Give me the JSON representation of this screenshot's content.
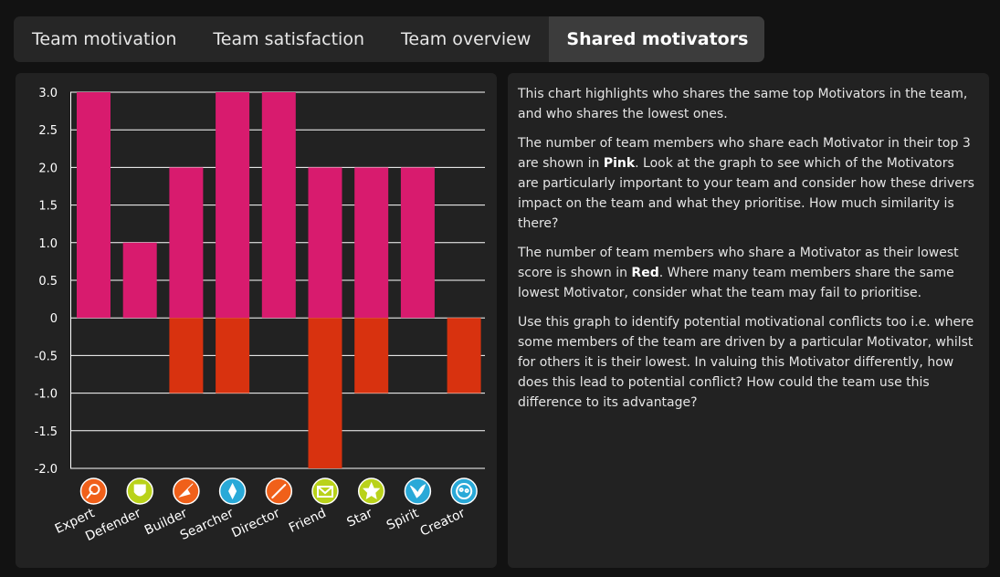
{
  "tabs": [
    {
      "label": "Team motivation",
      "active": false
    },
    {
      "label": "Team satisfaction",
      "active": false
    },
    {
      "label": "Team overview",
      "active": false
    },
    {
      "label": "Shared motivators",
      "active": true
    }
  ],
  "description": {
    "p1": "This chart highlights who shares the same top Motivators in the team, and who shares the lowest ones.",
    "p2_before": "The number of team members who share each Motivator in their top 3 are shown in ",
    "p2_bold": "Pink",
    "p2_after": ". Look at the graph to see which of the Motivators are particularly important to your team and consider how these drivers impact on the team and what they prioritise. How much similarity is there?",
    "p3_before": "The number of team members who share a Motivator as their lowest score is shown in ",
    "p3_bold": "Red",
    "p3_after": ". Where many team members share the same lowest Motivator, consider what the team may fail to prioritise.",
    "p4": "Use this graph to identify potential motivational conflicts too i.e. where some members of the team are driven by a particular Motivator, whilst for others it is their lowest. In valuing this Motivator differently, how does this lead to potential conflict? How could the team use this difference to its advantage?"
  },
  "chart_data": {
    "type": "bar",
    "categories": [
      "Expert",
      "Defender",
      "Builder",
      "Searcher",
      "Director",
      "Friend",
      "Star",
      "Spirit",
      "Creator"
    ],
    "series": [
      {
        "values": [
          3,
          1,
          2,
          3,
          3,
          2,
          2,
          2,
          0
        ],
        "color": "#d81b6e"
      },
      {
        "values": [
          0,
          0,
          -1,
          -1,
          0,
          -2,
          -1,
          0,
          -1
        ],
        "color": "#d8320f"
      }
    ],
    "ylim": [
      -2,
      3
    ],
    "yticks": [
      3.0,
      2.5,
      2.0,
      1.5,
      1.0,
      0.5,
      0,
      -0.5,
      -1.0,
      -1.5,
      -2.0
    ],
    "ytick_labels": [
      "3.0",
      "2.5",
      "2.0",
      "1.5",
      "1.0",
      "0.5",
      "0",
      "-0.5",
      "-1.0",
      "-1.5",
      "-2.0"
    ],
    "grid": true,
    "icons": [
      {
        "name": "magnifier-icon",
        "color": "#f0601a"
      },
      {
        "name": "shield-icon",
        "color": "#b9d21a"
      },
      {
        "name": "trowel-icon",
        "color": "#f0601a"
      },
      {
        "name": "compass-icon",
        "color": "#29a9d8"
      },
      {
        "name": "baton-icon",
        "color": "#f0601a"
      },
      {
        "name": "envelope-icon",
        "color": "#b9d21a"
      },
      {
        "name": "star-icon",
        "color": "#b9d21a"
      },
      {
        "name": "bird-icon",
        "color": "#29a9d8"
      },
      {
        "name": "palette-icon",
        "color": "#29a9d8"
      }
    ]
  }
}
